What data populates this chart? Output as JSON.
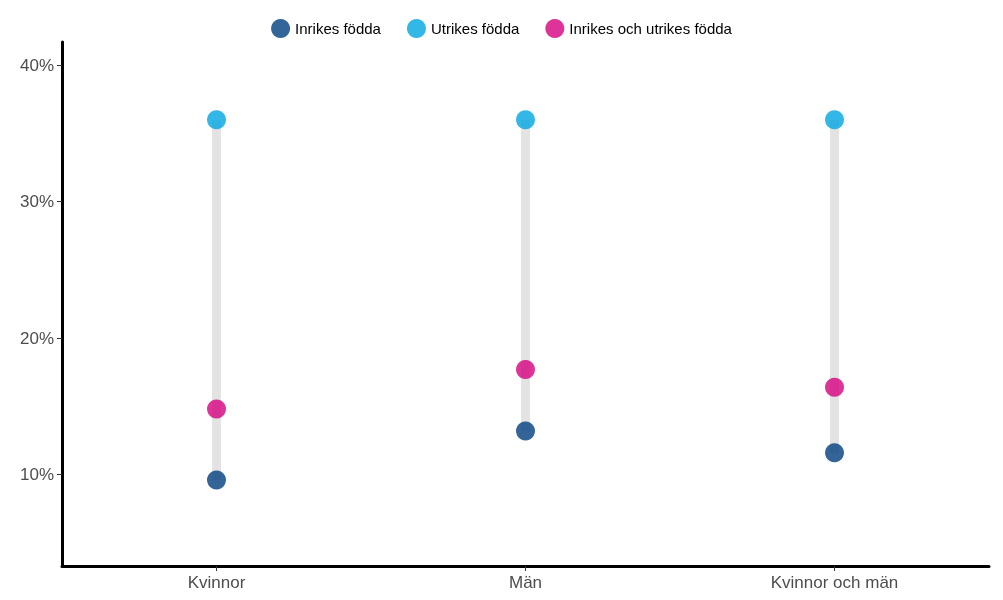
{
  "chart_data": {
    "type": "scatter",
    "categories": [
      "Kvinnor",
      "Män",
      "Kvinnor och män"
    ],
    "series": [
      {
        "name": "Inrikes födda",
        "color": "#003f7f",
        "values": [
          9.6,
          13.2,
          11.6
        ]
      },
      {
        "name": "Utrikes födda",
        "color": "#00a5e0",
        "values": [
          36.0,
          36.0,
          36.0
        ]
      },
      {
        "name": "Inrikes och utrikes födda",
        "color": "#d6007e",
        "values": [
          14.8,
          17.7,
          16.4
        ]
      }
    ],
    "ylim": [
      3.3,
      41.7
    ],
    "yticks": [
      {
        "value": 10,
        "label": "10%"
      },
      {
        "value": 20,
        "label": "20%"
      },
      {
        "value": 30,
        "label": "30%"
      },
      {
        "value": 40,
        "label": "40%"
      }
    ],
    "grid": false,
    "legend": "top",
    "marker": "circle"
  }
}
